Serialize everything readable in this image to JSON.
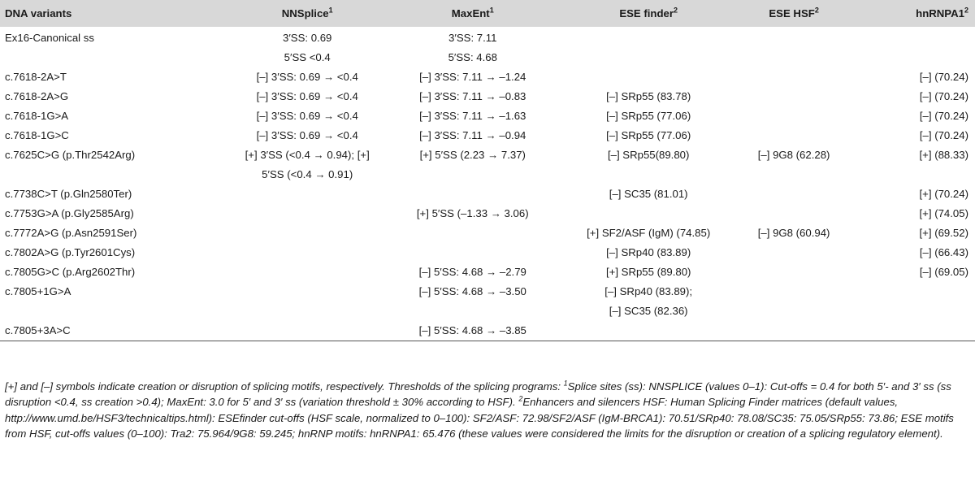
{
  "headers": [
    "DNA variants",
    "NNSplice",
    "MaxEnt",
    "ESE finder",
    "ESE HSF",
    "hnRNPA1"
  ],
  "header_sups": [
    "",
    "1",
    "1",
    "2",
    "2",
    "2"
  ],
  "rows": [
    {
      "variant": [
        "Ex16-Canonical ss"
      ],
      "nnsplice": [
        "3′SS: 0.69",
        "5′SS <0.4"
      ],
      "maxent": [
        "3′SS: 7.11",
        "5′SS: 4.68"
      ],
      "esefinder": [],
      "esehsf": [],
      "hnrnpa1": []
    },
    {
      "variant": [
        "c.7618-2A>T"
      ],
      "nnsplice": [
        "[–] 3′SS: 0.69 → <0.4"
      ],
      "maxent": [
        "[–] 3′SS: 7.11 → –1.24"
      ],
      "esefinder": [],
      "esehsf": [],
      "hnrnpa1": [
        "[–] (70.24)"
      ]
    },
    {
      "variant": [
        "c.7618-2A>G"
      ],
      "nnsplice": [
        "[–] 3′SS: 0.69 → <0.4"
      ],
      "maxent": [
        "[–] 3′SS: 7.11 → –0.83"
      ],
      "esefinder": [
        "[–] SRp55 (83.78)"
      ],
      "esehsf": [],
      "hnrnpa1": [
        "[–] (70.24)"
      ]
    },
    {
      "variant": [
        "c.7618-1G>A"
      ],
      "nnsplice": [
        "[–] 3′SS: 0.69 → <0.4"
      ],
      "maxent": [
        "[–] 3′SS: 7.11 → –1.63"
      ],
      "esefinder": [
        "[–] SRp55 (77.06)"
      ],
      "esehsf": [],
      "hnrnpa1": [
        "[–] (70.24)"
      ]
    },
    {
      "variant": [
        "c.7618-1G>C"
      ],
      "nnsplice": [
        "[–] 3′SS: 0.69 → <0.4"
      ],
      "maxent": [
        "[–] 3′SS: 7.11 → –0.94"
      ],
      "esefinder": [
        "[–] SRp55 (77.06)"
      ],
      "esehsf": [],
      "hnrnpa1": [
        "[–] (70.24)"
      ]
    },
    {
      "variant": [
        "c.7625C>G (p.Thr2542Arg)"
      ],
      "nnsplice": [
        "[+] 3′SS (<0.4 → 0.94); [+]",
        "5′SS (<0.4 → 0.91)"
      ],
      "maxent": [
        "[+] 5′SS (2.23 → 7.37)"
      ],
      "esefinder": [
        "[–] SRp55(89.80)"
      ],
      "esehsf": [
        "[–] 9G8 (62.28)"
      ],
      "hnrnpa1": [
        "[+] (88.33)"
      ]
    },
    {
      "variant": [
        "c.7738C>T (p.Gln2580Ter)"
      ],
      "nnsplice": [],
      "maxent": [],
      "esefinder": [
        "[–] SC35 (81.01)"
      ],
      "esehsf": [],
      "hnrnpa1": [
        "[+] (70.24)"
      ]
    },
    {
      "variant": [
        "c.7753G>A (p.Gly2585Arg)"
      ],
      "nnsplice": [],
      "maxent": [
        "[+] 5′SS (–1.33 → 3.06)"
      ],
      "esefinder": [],
      "esehsf": [],
      "hnrnpa1": [
        "[+] (74.05)"
      ]
    },
    {
      "variant": [
        "c.7772A>G (p.Asn2591Ser)"
      ],
      "nnsplice": [],
      "maxent": [],
      "esefinder": [
        "[+] SF2/ASF (IgM) (74.85)"
      ],
      "esehsf": [
        "[–] 9G8 (60.94)"
      ],
      "hnrnpa1": [
        "[+] (69.52)"
      ]
    },
    {
      "variant": [
        "c.7802A>G (p.Tyr2601Cys)"
      ],
      "nnsplice": [],
      "maxent": [],
      "esefinder": [
        "[–] SRp40 (83.89)"
      ],
      "esehsf": [],
      "hnrnpa1": [
        "[–] (66.43)"
      ]
    },
    {
      "variant": [
        "c.7805G>C (p.Arg2602Thr)"
      ],
      "nnsplice": [],
      "maxent": [
        "[–] 5′SS: 4.68 → –2.79"
      ],
      "esefinder": [
        "[+] SRp55 (89.80)"
      ],
      "esehsf": [],
      "hnrnpa1": [
        "[–] (69.05)"
      ]
    },
    {
      "variant": [
        "c.7805+1G>A"
      ],
      "nnsplice": [],
      "maxent": [
        "[–] 5′SS: 4.68 → –3.50"
      ],
      "esefinder": [
        "[–] SRp40 (83.89);",
        "[–] SC35 (82.36)"
      ],
      "esehsf": [],
      "hnrnpa1": []
    },
    {
      "variant": [
        "c.7805+3A>C"
      ],
      "nnsplice": [],
      "maxent": [
        "[–] 5′SS: 4.68 → –3.85"
      ],
      "esefinder": [],
      "esehsf": [],
      "hnrnpa1": []
    }
  ],
  "footnote": {
    "part1": "[+] and [–] symbols indicate creation or disruption of splicing motifs, respectively. Thresholds of the splicing programs: ",
    "sup1": "1",
    "part2": "Splice sites (ss): NNSPLICE (values 0–1): Cut-offs = 0.4 for both 5′- and 3′ ss (ss disruption <0.4, ss creation >0.4); MaxEnt: 3.0 for 5′ and 3′ ss (variation threshold ± 30% according to HSF). ",
    "sup2": "2",
    "part3": "Enhancers and silencers HSF: Human Splicing Finder matrices (default values, http://www.umd.be/HSF3/technicaltips.html): ESEfinder cut-offs (HSF scale, normalized to 0–100): SF2/ASF: 72.98/SF2/ASF (IgM-BRCA1): 70.51/SRp40: 78.08/SC35: 75.05/SRp55: 73.86; ESE motifs from HSF, cut-offs values (0–100): Tra2: 75.964/9G8: 59.245; hnRNP motifs: hnRNPA1: 65.476 (these values were considered the limits for the disruption or creation of a splicing regulatory element)."
  }
}
